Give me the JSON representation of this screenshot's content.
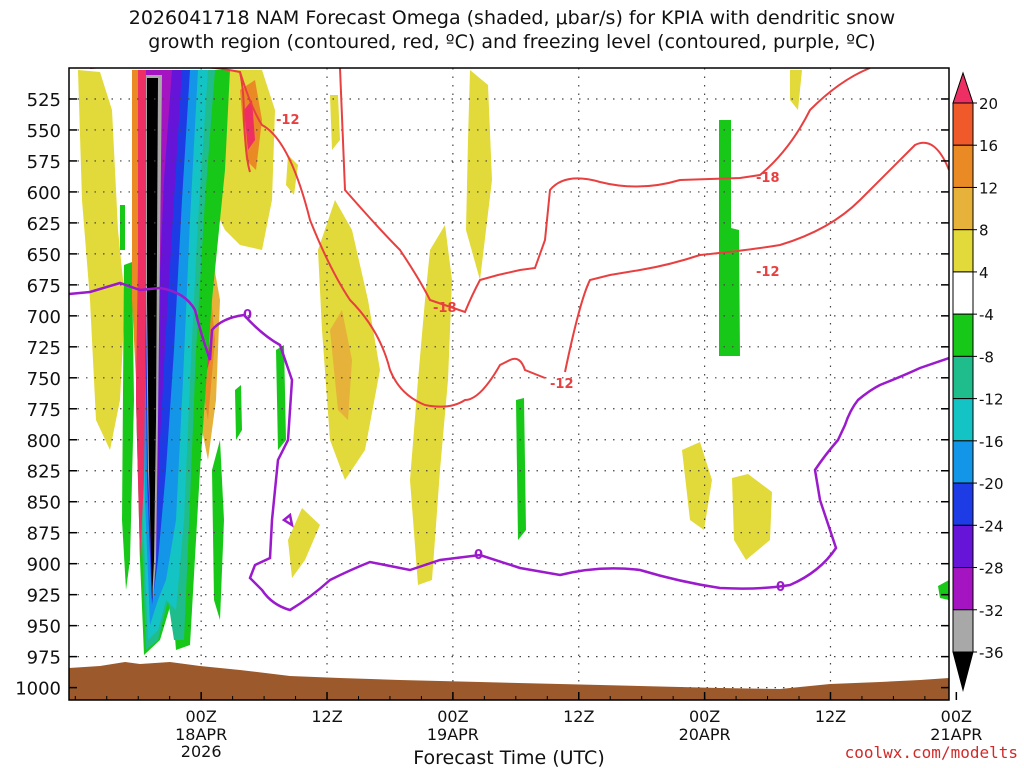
{
  "chart_data": {
    "type": "heatmap",
    "title_line1": "2026041718 NAM Forecast Omega (shaded, μbar/s) for KPIA with dendritic snow",
    "title_line2": "growth region (contoured, red, ºC) and freezing level (contoured, purple, ºC)",
    "xlabel": "Forecast Time (UTC)",
    "ylabel": "",
    "y_axis": {
      "scale": "pressure (inverted)",
      "ticks": [
        525,
        550,
        575,
        600,
        625,
        650,
        675,
        700,
        725,
        750,
        775,
        800,
        825,
        850,
        875,
        900,
        925,
        950,
        975,
        1000
      ],
      "range": [
        500,
        1010
      ]
    },
    "x_axis": {
      "range_hours": [
        -12.6,
        71.3
      ],
      "ticks": [
        {
          "label": "00Z",
          "sub1": "18APR",
          "sub2": "2026"
        },
        {
          "label": "12Z",
          "sub1": "",
          "sub2": ""
        },
        {
          "label": "00Z",
          "sub1": "19APR",
          "sub2": ""
        },
        {
          "label": "12Z",
          "sub1": "",
          "sub2": ""
        },
        {
          "label": "00Z",
          "sub1": "20APR",
          "sub2": ""
        },
        {
          "label": "12Z",
          "sub1": "",
          "sub2": ""
        },
        {
          "label": "00Z",
          "sub1": "21APR",
          "sub2": ""
        }
      ],
      "tick_hours": [
        0,
        12,
        24,
        36,
        48,
        60,
        72
      ]
    },
    "grid": true,
    "colorbar": {
      "placement": "right",
      "labels": [
        "20",
        "16",
        "12",
        "8",
        "4",
        "-4",
        "-8",
        "-12",
        "-16",
        "-20",
        "-24",
        "-28",
        "-32",
        "-36"
      ],
      "colors": [
        "#ee2f64",
        "#f05a2a",
        "#ea8a25",
        "#e6b23a",
        "#e2d93a",
        "#ffffff",
        "#18c818",
        "#20bd8c",
        "#14c4c4",
        "#1496e8",
        "#1e3ce6",
        "#6614d8",
        "#a414c0",
        "#a8a8a8",
        "#000000"
      ]
    },
    "contours": {
      "dendritic_snow_red": {
        "color": "#e84040",
        "labels": [
          "-12",
          "-18",
          "-12",
          "-18",
          "-12"
        ]
      },
      "freezing_level_purple": {
        "color": "#9a1acc",
        "labels": [
          "0",
          "0",
          "0"
        ]
      }
    },
    "terrain_color": "#9c5a2c"
  },
  "credit": "coolwx.com/modelts"
}
